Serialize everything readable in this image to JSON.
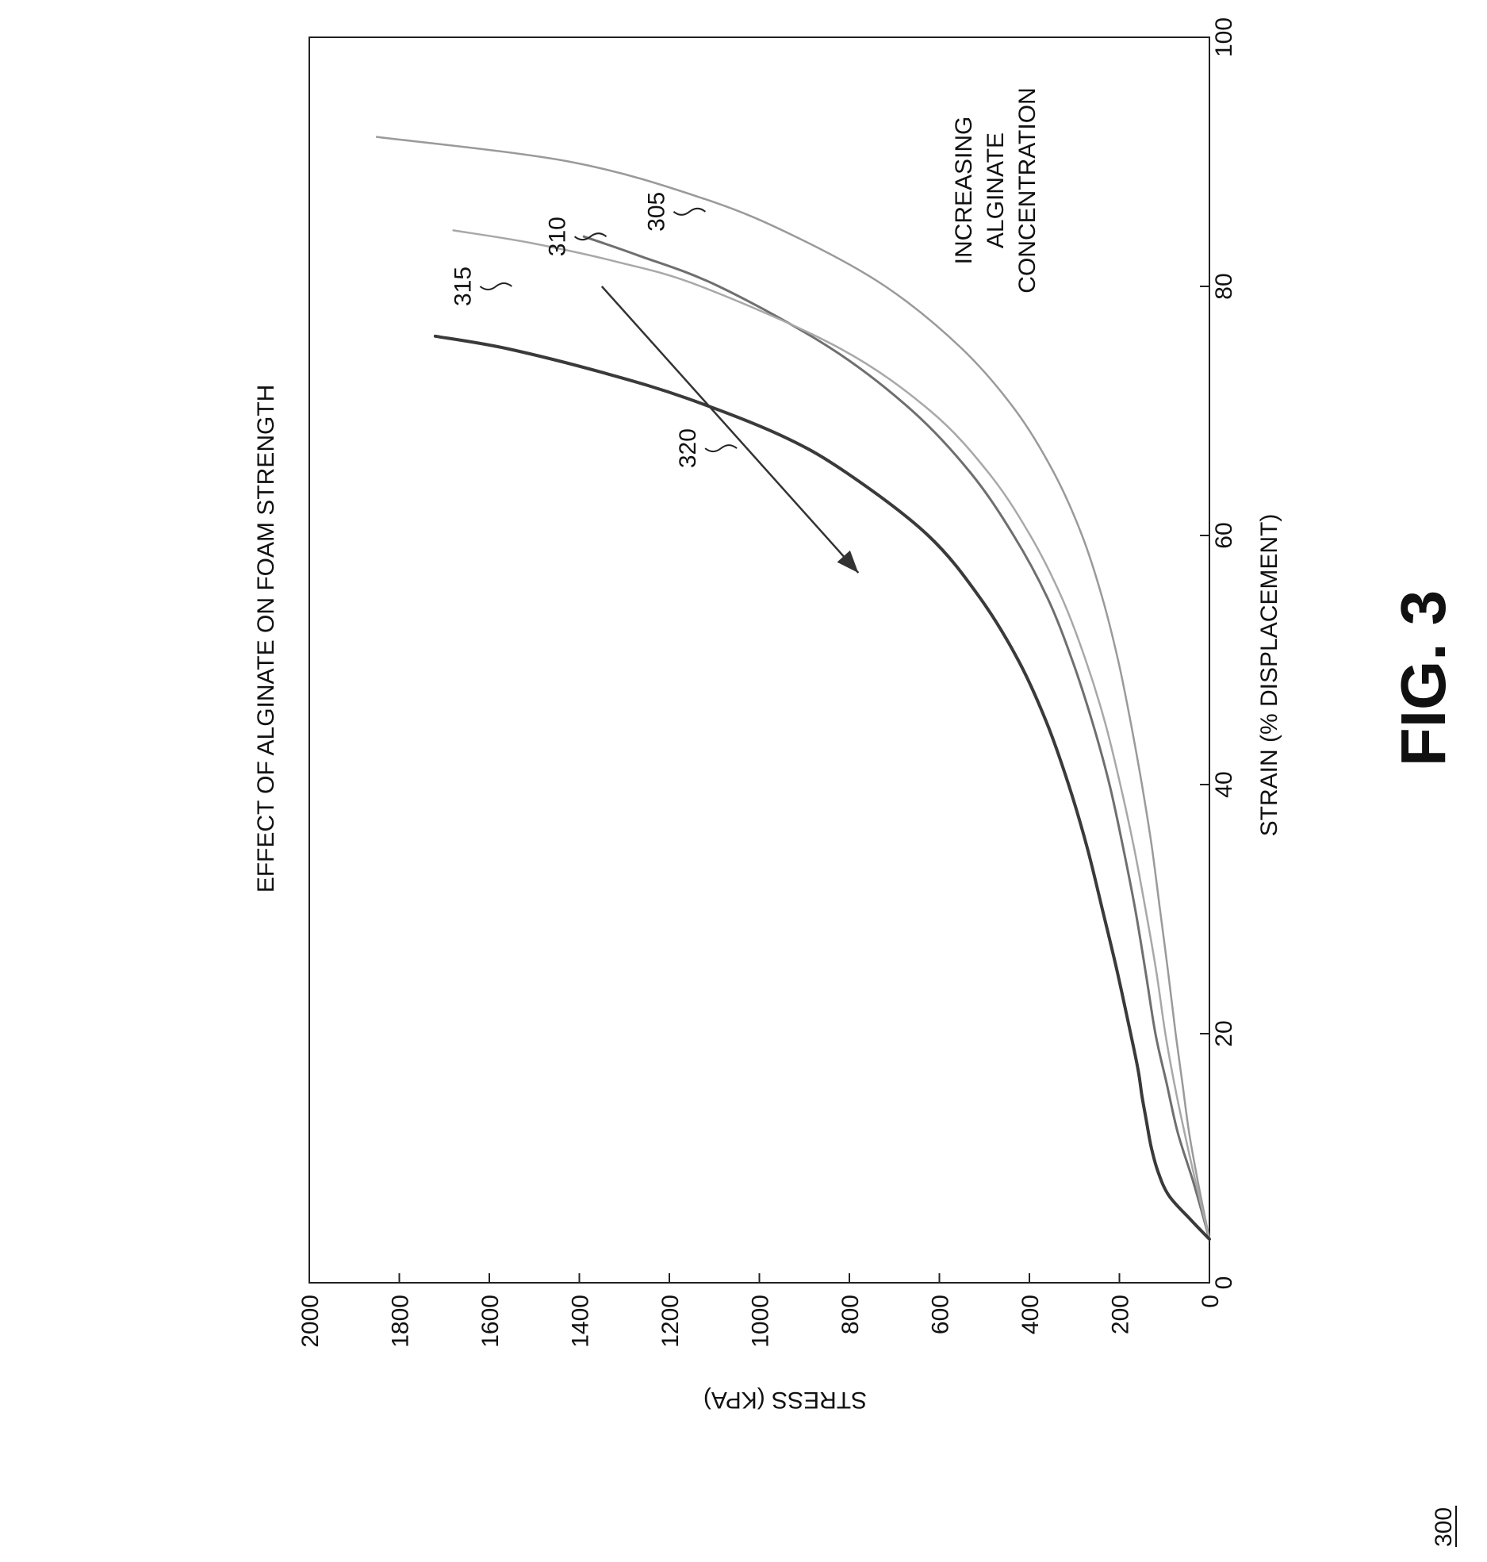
{
  "figure_number": "300",
  "figure_caption": "FIG. 3",
  "chart_data": {
    "type": "line",
    "title": "EFFECT OF ALGINATE ON FOAM STRENGTH",
    "xlabel": "STRAIN (% DISPLACEMENT)",
    "ylabel": "STRESS (KPA)",
    "xlim": [
      0,
      100
    ],
    "ylim": [
      0,
      2000
    ],
    "xticks": [
      0,
      20,
      40,
      60,
      80,
      100
    ],
    "yticks": [
      0,
      200,
      400,
      600,
      800,
      1000,
      1200,
      1400,
      1600,
      1800,
      2000
    ],
    "grid": false,
    "legend": "none",
    "annotation": {
      "lines": [
        "INCREASING",
        "ALGINATE",
        "CONCENTRATION"
      ],
      "arrow_from": [
        80,
        1350
      ],
      "arrow_to": [
        57,
        780
      ]
    },
    "series": [
      {
        "name": "305",
        "color": "#9a9a9a",
        "width": 2.5,
        "x": [
          3.5,
          8,
          12,
          16,
          20,
          25,
          30,
          35,
          40,
          45,
          50,
          55,
          60,
          65,
          70,
          75,
          80,
          84,
          87,
          90,
          92
        ],
        "y": [
          0,
          25,
          45,
          60,
          75,
          92,
          110,
          128,
          150,
          175,
          203,
          238,
          283,
          345,
          430,
          550,
          720,
          920,
          1120,
          1420,
          1850
        ],
        "label_at": [
          86,
          1120
        ]
      },
      {
        "name": "310",
        "color": "#6f6f6f",
        "width": 3,
        "x": [
          3.5,
          8,
          12,
          16,
          20,
          25,
          30,
          35,
          40,
          45,
          50,
          55,
          60,
          65,
          70,
          75,
          80,
          82.5,
          84
        ],
        "y": [
          0,
          35,
          70,
          95,
          120,
          142,
          165,
          192,
          222,
          260,
          305,
          360,
          435,
          530,
          660,
          840,
          1090,
          1270,
          1390
        ],
        "label_at": [
          84,
          1340
        ]
      },
      {
        "name": "315",
        "color": "#a8a8a8",
        "width": 2.5,
        "x": [
          3.5,
          8,
          12,
          16,
          20,
          25,
          30,
          35,
          40,
          45,
          50,
          55,
          60,
          65,
          70,
          75,
          80,
          82,
          83.5,
          84.5
        ],
        "y": [
          0,
          30,
          55,
          78,
          98,
          118,
          142,
          168,
          198,
          232,
          275,
          328,
          398,
          490,
          620,
          820,
          1130,
          1320,
          1510,
          1680
        ],
        "label_at": [
          80,
          1550
        ]
      },
      {
        "name": "320",
        "color": "#3a3a3a",
        "width": 4,
        "x": [
          3.5,
          5,
          7,
          9,
          11,
          13,
          15,
          17,
          20,
          25,
          30,
          35,
          40,
          45,
          50,
          55,
          60,
          65,
          68,
          71,
          73,
          75,
          76
        ],
        "y": [
          0,
          40,
          90,
          115,
          130,
          140,
          150,
          158,
          175,
          205,
          238,
          272,
          313,
          362,
          425,
          510,
          625,
          805,
          950,
          1160,
          1340,
          1560,
          1720
        ],
        "label_at": [
          67,
          1050
        ]
      }
    ]
  }
}
